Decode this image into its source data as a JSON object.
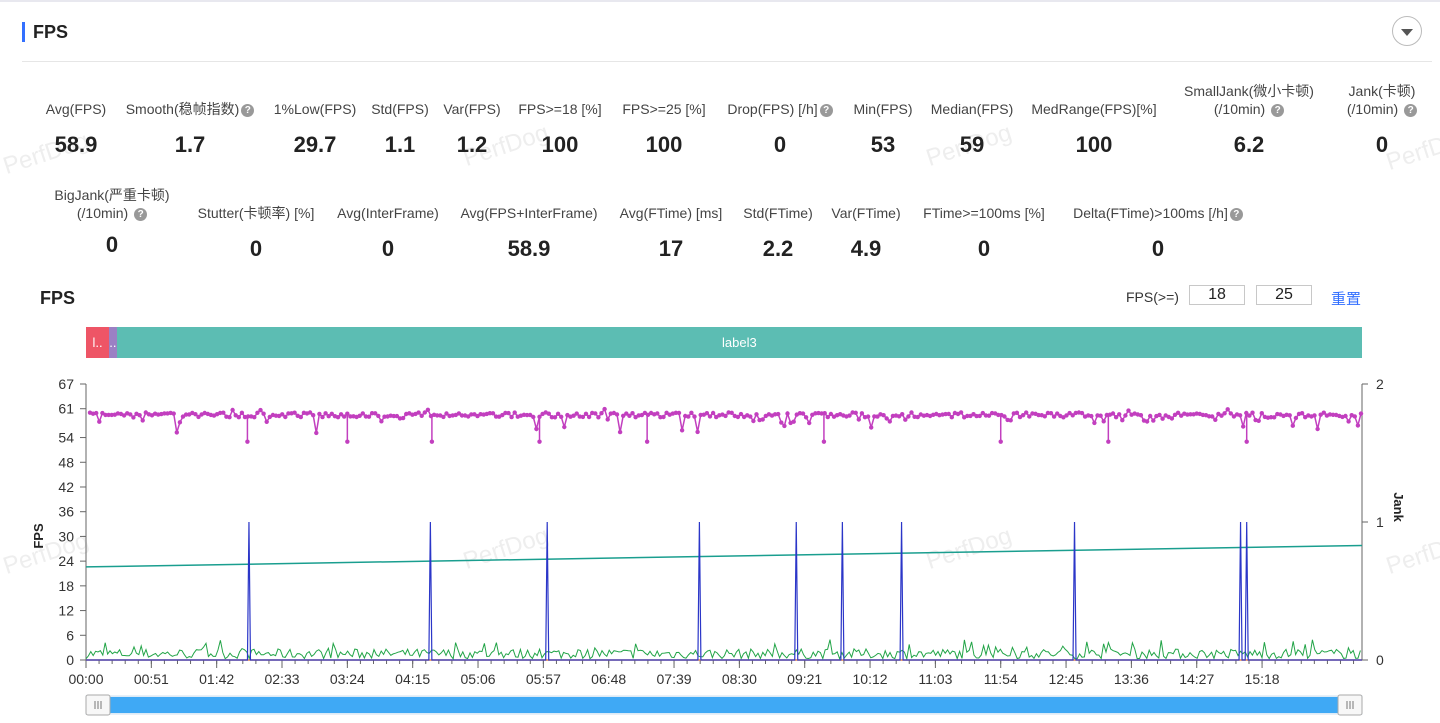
{
  "header": {
    "title": "FPS"
  },
  "metrics_row1": [
    {
      "label": "Avg(FPS)",
      "value": "58.9",
      "help": false
    },
    {
      "label": "Smooth(稳帧指数)",
      "value": "1.7",
      "help": true
    },
    {
      "label": "1%Low(FPS)",
      "value": "29.7",
      "help": false
    },
    {
      "label": "Std(FPS)",
      "value": "1.1",
      "help": false
    },
    {
      "label": "Var(FPS)",
      "value": "1.2",
      "help": false
    },
    {
      "label": "FPS>=18 [%]",
      "value": "100",
      "help": false
    },
    {
      "label": "FPS>=25 [%]",
      "value": "100",
      "help": false
    },
    {
      "label": "Drop(FPS) [/h]",
      "value": "0",
      "help": true
    },
    {
      "label": "Min(FPS)",
      "value": "53",
      "help": false
    },
    {
      "label": "Median(FPS)",
      "value": "59",
      "help": false
    },
    {
      "label": "MedRange(FPS)[%]",
      "value": "100",
      "help": false
    },
    {
      "label": "SmallJank(微小卡顿)",
      "label2": "(/10min)",
      "value": "6.2",
      "help": true
    },
    {
      "label": "Jank(卡顿)",
      "label2": "(/10min)",
      "value": "0",
      "help": true
    }
  ],
  "metrics_row2": [
    {
      "label": "BigJank(严重卡顿)",
      "label2": "(/10min)",
      "value": "0",
      "help": true
    },
    {
      "label": "Stutter(卡顿率) [%]",
      "value": "0",
      "help": false
    },
    {
      "label": "Avg(InterFrame)",
      "value": "0",
      "help": false
    },
    {
      "label": "Avg(FPS+InterFrame)",
      "value": "58.9",
      "help": false
    },
    {
      "label": "Avg(FTime) [ms]",
      "value": "17",
      "help": false
    },
    {
      "label": "Std(FTime)",
      "value": "2.2",
      "help": false
    },
    {
      "label": "Var(FTime)",
      "value": "4.9",
      "help": false
    },
    {
      "label": "FTime>=100ms [%]",
      "value": "0",
      "help": false
    },
    {
      "label": "Delta(FTime)>100ms [/h]",
      "value": "0",
      "help": true
    }
  ],
  "watermark_text": "PerfDog",
  "chart_controls": {
    "title": "FPS",
    "threshold_label": "FPS(>=)",
    "threshold_1": "18",
    "threshold_2": "25",
    "reset_label": "重置"
  },
  "label_segments": [
    {
      "text": "l..",
      "color": "#ee5566",
      "start": 0.0,
      "end": 0.3
    },
    {
      "text": "..",
      "color": "#9b80c4",
      "start": 0.3,
      "end": 0.4
    },
    {
      "text": "label3",
      "color": "#5cbdb3",
      "start": 0.4,
      "end": 16.6
    }
  ],
  "chart_data": {
    "type": "line",
    "title": "FPS",
    "ylabel": "FPS",
    "y2label": "Jank",
    "ylim": [
      0,
      67
    ],
    "y2lim": [
      0,
      2
    ],
    "yticks": [
      "0",
      "6",
      "12",
      "18",
      "24",
      "30",
      "36",
      "42",
      "48",
      "54",
      "61",
      "67"
    ],
    "y2ticks": [
      "0",
      "1",
      "2"
    ],
    "xlim_minutes": [
      0,
      16.6
    ],
    "xticks": [
      "00:00",
      "00:51",
      "01:42",
      "02:33",
      "03:24",
      "04:15",
      "05:06",
      "05:57",
      "06:48",
      "07:39",
      "08:30",
      "09:21",
      "10:12",
      "11:03",
      "11:54",
      "12:45",
      "13:36",
      "14:27",
      "15:18"
    ],
    "series": [
      {
        "name": "FPS",
        "color": "#c23fbf",
        "typical": 59.5,
        "min": 53,
        "max": 61,
        "dips_minutes": [
          2.1,
          3.4,
          4.5,
          5.9,
          7.3,
          9.6,
          11.9,
          13.3,
          15.1
        ]
      },
      {
        "name": "Jank",
        "color": "#2b36c8",
        "axis": "right",
        "spike_value": 1,
        "spike_minutes": [
          2.12,
          4.48,
          6.0,
          7.98,
          9.24,
          9.84,
          10.61,
          12.86,
          15.02,
          15.1
        ]
      },
      {
        "name": "FrameTime",
        "color": "#22a447",
        "typical": 1.5,
        "max": 5
      },
      {
        "name": "FPS trend",
        "color": "#1a9e8f",
        "start": 22.6,
        "end": 27.8
      },
      {
        "name": "Baseline",
        "color": "#ee8844",
        "value": 0
      }
    ]
  }
}
